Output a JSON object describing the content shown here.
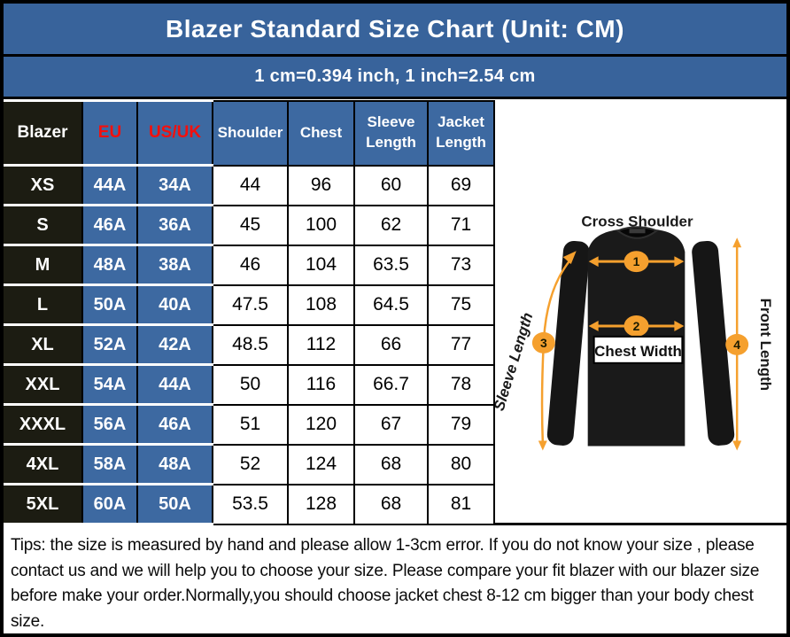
{
  "title": "Blazer Standard Size Chart  (Unit: CM)",
  "subtitle": "1 cm=0.394 inch, 1 inch=2.54 cm",
  "table": {
    "headers": [
      "Blazer",
      "EU",
      "US/UK",
      "Shoulder",
      "Chest",
      "Sleeve Length",
      "Jacket Length"
    ],
    "rows": [
      [
        "XS",
        "44A",
        "34A",
        "44",
        "96",
        "60",
        "69"
      ],
      [
        "S",
        "46A",
        "36A",
        "45",
        "100",
        "62",
        "71"
      ],
      [
        "M",
        "48A",
        "38A",
        "46",
        "104",
        "63.5",
        "73"
      ],
      [
        "L",
        "50A",
        "40A",
        "47.5",
        "108",
        "64.5",
        "75"
      ],
      [
        "XL",
        "52A",
        "42A",
        "48.5",
        "112",
        "66",
        "77"
      ],
      [
        "XXL",
        "54A",
        "44A",
        "50",
        "116",
        "66.7",
        "78"
      ],
      [
        "XXXL",
        "56A",
        "46A",
        "51",
        "120",
        "67",
        "79"
      ],
      [
        "4XL",
        "58A",
        "48A",
        "52",
        "124",
        "68",
        "80"
      ],
      [
        "5XL",
        "60A",
        "50A",
        "53.5",
        "128",
        "68",
        "81"
      ]
    ]
  },
  "diagram": {
    "labels": {
      "cross_shoulder": "Cross Shoulder",
      "chest_width": "Chest Width",
      "sleeve_length": "Sleeve Length",
      "front_length": "Front Length"
    },
    "markers": [
      "1",
      "2",
      "3",
      "4"
    ]
  },
  "tips": "Tips: the size is measured by hand and please allow 1-3cm error. If you do not know your size , please contact us and we will help you to choose your size. Please compare your fit blazer with our blazer size before make your order.Normally,you should choose jacket chest 8-12 cm bigger than your body chest size.",
  "colors": {
    "header_blue": "#38639B",
    "cell_blue": "#3D69A1",
    "dark_cell": "#1C1C12",
    "red_text": "#F50F0C",
    "orange": "#F5A02E"
  }
}
